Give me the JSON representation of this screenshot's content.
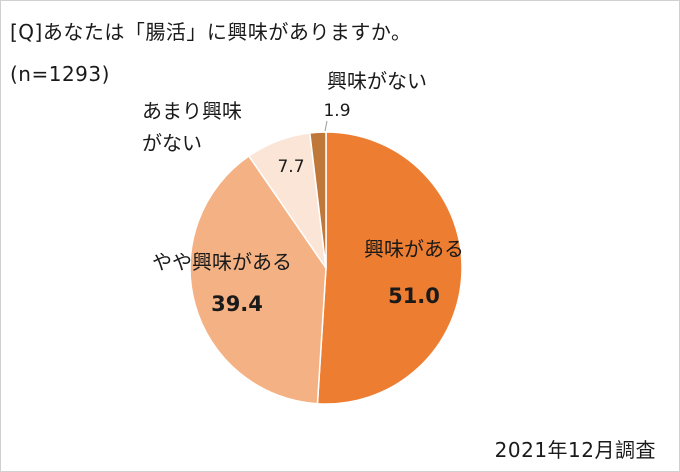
{
  "title": "[Q]あなたは「腸活」に興味がありますか。",
  "subtitle": "(n=1293)",
  "footnote": "2021年12月調査",
  "chart_data": {
    "type": "pie",
    "title": "[Q]あなたは「腸活」に興味がありますか。",
    "subtitle": "(n=1293)",
    "start_angle_deg": 0,
    "direction": "clockwise",
    "slices": [
      {
        "label": "興味がある",
        "value": 51.0,
        "value_label": "51.0",
        "color": "#ed7d31",
        "bold_value": true
      },
      {
        "label": "やや興味がある",
        "value": 39.4,
        "value_label": "39.4",
        "color": "#f4b183",
        "bold_value": true
      },
      {
        "label": "あまり興味がない",
        "label_lines": [
          "あまり興味",
          "がない"
        ],
        "value": 7.7,
        "value_label": "7.7",
        "color": "#fbe5d6",
        "bold_value": false
      },
      {
        "label": "興味がない",
        "value": 1.9,
        "value_label": "1.9",
        "color": "#c0773a",
        "bold_value": false
      }
    ]
  }
}
